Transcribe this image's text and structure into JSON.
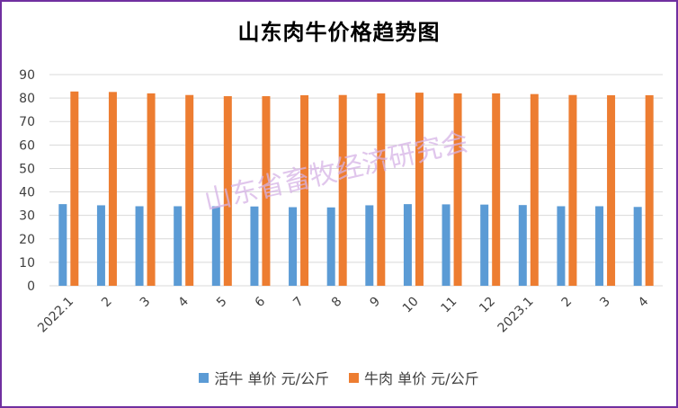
{
  "chart_data": {
    "type": "bar",
    "title": "山东肉牛价格趋势图",
    "xlabel": "",
    "ylabel": "",
    "ylim": [
      0,
      90
    ],
    "yticks": [
      0,
      10,
      20,
      30,
      40,
      50,
      60,
      70,
      80,
      90
    ],
    "grid": true,
    "legend_position": "bottom",
    "categories": [
      "2022.1",
      "2",
      "3",
      "4",
      "5",
      "6",
      "7",
      "8",
      "9",
      "10",
      "11",
      "12",
      "2023.1",
      "2",
      "3",
      "4"
    ],
    "series": [
      {
        "name": "活牛 单价 元/公斤",
        "color": "#5b9bd5",
        "values": [
          34.8,
          34.3,
          33.9,
          33.9,
          33.9,
          33.8,
          33.5,
          33.4,
          34.3,
          34.8,
          34.7,
          34.6,
          34.4,
          33.9,
          33.9,
          33.6
        ]
      },
      {
        "name": "牛肉 单价 元/公斤",
        "color": "#ed7d31",
        "values": [
          82.8,
          82.6,
          82.0,
          81.3,
          80.8,
          80.8,
          81.2,
          81.3,
          82.0,
          82.3,
          82.0,
          82.0,
          81.7,
          81.3,
          81.2,
          81.2
        ]
      }
    ]
  },
  "watermark": "山东省畜牧经济研究会",
  "colors": {
    "border": "#7030a0",
    "gridline": "#d9d9d9"
  }
}
